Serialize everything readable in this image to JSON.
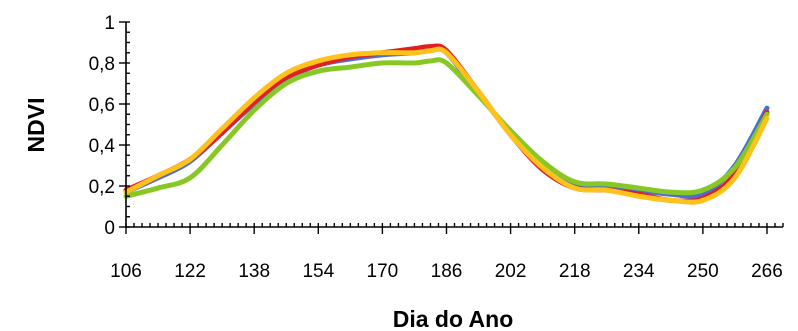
{
  "chart_data": {
    "type": "line",
    "title": "",
    "xlabel": "Dia do Ano",
    "ylabel": "NDVI",
    "xlim": [
      106,
      270
    ],
    "ylim": [
      0,
      1
    ],
    "x_ticks": [
      106,
      122,
      138,
      154,
      170,
      186,
      202,
      218,
      234,
      250,
      266
    ],
    "x_tick_labels": [
      "106",
      "122",
      "138",
      "154",
      "170",
      "186",
      "202",
      "218",
      "234",
      "250",
      "266"
    ],
    "y_ticks": [
      0,
      0.2,
      0.4,
      0.6,
      0.8,
      1
    ],
    "y_tick_labels": [
      "0",
      "0,2",
      "0,4",
      "0,6",
      "0,8",
      "1"
    ],
    "x_minor_step": 2,
    "y_minor_step": 0.05,
    "grid": false,
    "legend": "none",
    "series": [
      {
        "color": "#4a6fd4",
        "points": [
          [
            106,
            0.17
          ],
          [
            114,
            0.24
          ],
          [
            122,
            0.32
          ],
          [
            130,
            0.46
          ],
          [
            138,
            0.6
          ],
          [
            146,
            0.72
          ],
          [
            154,
            0.79
          ],
          [
            162,
            0.82
          ],
          [
            170,
            0.84
          ],
          [
            178,
            0.85
          ],
          [
            182,
            0.86
          ],
          [
            186,
            0.85
          ],
          [
            194,
            0.65
          ],
          [
            202,
            0.46
          ],
          [
            210,
            0.3
          ],
          [
            218,
            0.21
          ],
          [
            226,
            0.2
          ],
          [
            234,
            0.18
          ],
          [
            242,
            0.16
          ],
          [
            250,
            0.16
          ],
          [
            258,
            0.3
          ],
          [
            266,
            0.58
          ]
        ]
      },
      {
        "color": "#e02020",
        "points": [
          [
            106,
            0.18
          ],
          [
            114,
            0.25
          ],
          [
            122,
            0.33
          ],
          [
            130,
            0.46
          ],
          [
            138,
            0.61
          ],
          [
            146,
            0.73
          ],
          [
            154,
            0.79
          ],
          [
            162,
            0.83
          ],
          [
            170,
            0.85
          ],
          [
            178,
            0.87
          ],
          [
            182,
            0.88
          ],
          [
            186,
            0.86
          ],
          [
            194,
            0.66
          ],
          [
            202,
            0.45
          ],
          [
            210,
            0.28
          ],
          [
            218,
            0.19
          ],
          [
            226,
            0.18
          ],
          [
            234,
            0.16
          ],
          [
            242,
            0.13
          ],
          [
            250,
            0.14
          ],
          [
            258,
            0.26
          ],
          [
            266,
            0.56
          ]
        ]
      },
      {
        "color": "#88c824",
        "points": [
          [
            106,
            0.15
          ],
          [
            114,
            0.19
          ],
          [
            122,
            0.24
          ],
          [
            130,
            0.4
          ],
          [
            138,
            0.57
          ],
          [
            146,
            0.7
          ],
          [
            154,
            0.76
          ],
          [
            162,
            0.78
          ],
          [
            170,
            0.8
          ],
          [
            178,
            0.8
          ],
          [
            182,
            0.81
          ],
          [
            186,
            0.8
          ],
          [
            194,
            0.64
          ],
          [
            202,
            0.47
          ],
          [
            210,
            0.32
          ],
          [
            218,
            0.22
          ],
          [
            226,
            0.21
          ],
          [
            234,
            0.19
          ],
          [
            242,
            0.17
          ],
          [
            250,
            0.18
          ],
          [
            258,
            0.29
          ],
          [
            266,
            0.55
          ]
        ]
      },
      {
        "color": "#ffc21a",
        "points": [
          [
            106,
            0.17
          ],
          [
            114,
            0.25
          ],
          [
            122,
            0.33
          ],
          [
            130,
            0.48
          ],
          [
            138,
            0.63
          ],
          [
            146,
            0.75
          ],
          [
            154,
            0.81
          ],
          [
            162,
            0.84
          ],
          [
            170,
            0.85
          ],
          [
            178,
            0.85
          ],
          [
            182,
            0.86
          ],
          [
            186,
            0.85
          ],
          [
            194,
            0.66
          ],
          [
            202,
            0.45
          ],
          [
            210,
            0.29
          ],
          [
            218,
            0.19
          ],
          [
            226,
            0.18
          ],
          [
            234,
            0.15
          ],
          [
            242,
            0.13
          ],
          [
            250,
            0.13
          ],
          [
            258,
            0.24
          ],
          [
            266,
            0.53
          ]
        ]
      }
    ]
  }
}
